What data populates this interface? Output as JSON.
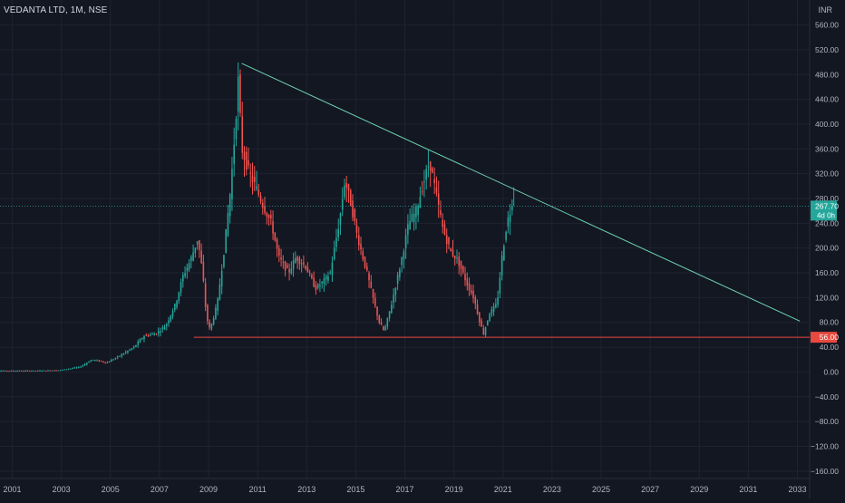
{
  "header": {
    "title": "VEDANTA LTD, 1M, NSE",
    "currency": "INR"
  },
  "colors": {
    "background": "#131722",
    "grid": "#1f2330",
    "axis_text": "#b2b5be",
    "up": "#26a69a",
    "down": "#ef5350",
    "trendline": "#6fd3b0",
    "support": "#e84a3f",
    "current_price_line": "#26a69a"
  },
  "chart_data": {
    "type": "candlestick",
    "symbol": "VEDANTA LTD",
    "interval": "1M",
    "exchange": "NSE",
    "y_ticks": [
      "560.00",
      "520.00",
      "480.00",
      "440.00",
      "400.00",
      "360.00",
      "320.00",
      "280.00",
      "240.00",
      "200.00",
      "160.00",
      "120.00",
      "80.00",
      "40.00",
      "0.00",
      "−40.00",
      "−80.00",
      "−120.00",
      "−160.00"
    ],
    "y_tick_values": [
      560,
      520,
      480,
      440,
      400,
      360,
      320,
      280,
      240,
      200,
      160,
      120,
      80,
      40,
      0,
      -40,
      -80,
      -120,
      -160
    ],
    "ylim": [
      -172,
      574
    ],
    "x_ticks": [
      "2001",
      "2003",
      "2005",
      "2007",
      "2009",
      "2011",
      "2013",
      "2015",
      "2017",
      "2019",
      "2021",
      "2023",
      "2025",
      "2027",
      "2029",
      "2031",
      "2033"
    ],
    "x_range": [
      2000.5,
      2033.5
    ],
    "price_path": [
      [
        2000.0,
        2
      ],
      [
        2002.0,
        2
      ],
      [
        2003.0,
        3
      ],
      [
        2003.8,
        8
      ],
      [
        2004.3,
        20
      ],
      [
        2004.9,
        15
      ],
      [
        2005.5,
        28
      ],
      [
        2006.0,
        40
      ],
      [
        2006.4,
        58
      ],
      [
        2006.9,
        62
      ],
      [
        2007.3,
        75
      ],
      [
        2007.7,
        110
      ],
      [
        2008.0,
        155
      ],
      [
        2008.3,
        180
      ],
      [
        2008.6,
        215
      ],
      [
        2008.8,
        160
      ],
      [
        2008.95,
        90
      ],
      [
        2009.1,
        68
      ],
      [
        2009.4,
        110
      ],
      [
        2009.7,
        205
      ],
      [
        2009.95,
        300
      ],
      [
        2010.1,
        380
      ],
      [
        2010.25,
        470
      ],
      [
        2010.4,
        360
      ],
      [
        2010.7,
        320
      ],
      [
        2010.95,
        300
      ],
      [
        2011.25,
        270
      ],
      [
        2011.6,
        240
      ],
      [
        2011.9,
        185
      ],
      [
        2012.3,
        160
      ],
      [
        2012.6,
        185
      ],
      [
        2013.0,
        170
      ],
      [
        2013.4,
        135
      ],
      [
        2013.7,
        145
      ],
      [
        2014.0,
        160
      ],
      [
        2014.4,
        250
      ],
      [
        2014.6,
        310
      ],
      [
        2014.85,
        270
      ],
      [
        2015.1,
        220
      ],
      [
        2015.5,
        160
      ],
      [
        2015.8,
        110
      ],
      [
        2016.0,
        80
      ],
      [
        2016.2,
        65
      ],
      [
        2016.5,
        110
      ],
      [
        2016.9,
        180
      ],
      [
        2017.2,
        240
      ],
      [
        2017.5,
        260
      ],
      [
        2017.8,
        305
      ],
      [
        2018.05,
        340
      ],
      [
        2018.3,
        290
      ],
      [
        2018.6,
        230
      ],
      [
        2018.9,
        195
      ],
      [
        2019.2,
        180
      ],
      [
        2019.6,
        140
      ],
      [
        2019.85,
        120
      ],
      [
        2020.1,
        80
      ],
      [
        2020.25,
        62
      ],
      [
        2020.5,
        95
      ],
      [
        2020.8,
        110
      ],
      [
        2021.0,
        185
      ],
      [
        2021.2,
        240
      ],
      [
        2021.4,
        268
      ]
    ],
    "trendline": {
      "from": [
        2010.35,
        498
      ],
      "to": [
        2033.1,
        82
      ]
    },
    "support_line": {
      "from": [
        2008.4,
        56
      ],
      "to": [
        2033.5,
        56
      ],
      "label": "56.00"
    },
    "current_price": {
      "value": 267.7,
      "label": "267.70",
      "countdown": "4d 0h"
    }
  }
}
